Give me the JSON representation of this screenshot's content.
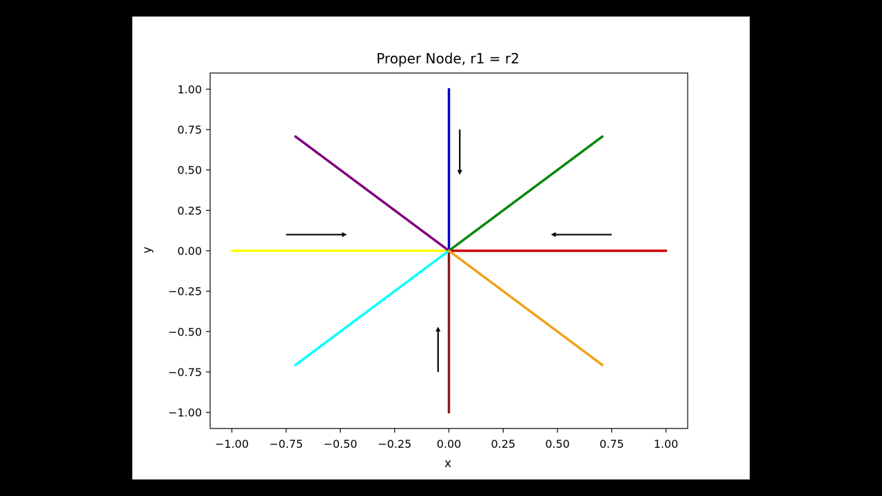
{
  "chart_data": {
    "type": "line",
    "title": "Proper Node, r1 = r2",
    "xlabel": "x",
    "ylabel": "y",
    "xlim": [
      -1.1,
      1.1
    ],
    "ylim": [
      -1.1,
      1.1
    ],
    "x_ticks": [
      "−1.00",
      "−0.75",
      "−0.50",
      "−0.25",
      "0.00",
      "0.25",
      "0.50",
      "0.75",
      "1.00"
    ],
    "y_ticks": [
      "1.00",
      "0.75",
      "0.50",
      "0.25",
      "0.00",
      "−0.25",
      "−0.50",
      "−0.75",
      "−1.00"
    ],
    "grid": false,
    "legend": "none",
    "series": [
      {
        "color": "#cc0000",
        "x": [
          0,
          1
        ],
        "y": [
          0,
          0
        ]
      },
      {
        "color": "#0000cc",
        "x": [
          0,
          0
        ],
        "y": [
          0,
          1
        ]
      },
      {
        "color": "#ffff00",
        "x": [
          0,
          -1
        ],
        "y": [
          0,
          0
        ]
      },
      {
        "color": "#8b1a1a",
        "x": [
          0,
          0
        ],
        "y": [
          0,
          -1
        ]
      },
      {
        "color": "#008800",
        "x": [
          0,
          0.707
        ],
        "y": [
          0,
          0.707
        ]
      },
      {
        "color": "#800080",
        "x": [
          0,
          -0.707
        ],
        "y": [
          0,
          0.707
        ]
      },
      {
        "color": "#00ffff",
        "x": [
          0,
          -0.707
        ],
        "y": [
          0,
          -0.707
        ]
      },
      {
        "color": "#f0a01a",
        "x": [
          0,
          0.707
        ],
        "y": [
          0,
          -0.707
        ]
      }
    ],
    "arrows": [
      {
        "from": [
          0.05,
          0.75
        ],
        "to": [
          0.05,
          0.47
        ]
      },
      {
        "from": [
          -0.75,
          0.1
        ],
        "to": [
          -0.47,
          0.1
        ]
      },
      {
        "from": [
          0.75,
          0.1
        ],
        "to": [
          0.47,
          0.1
        ]
      },
      {
        "from": [
          -0.05,
          -0.75
        ],
        "to": [
          -0.05,
          -0.47
        ]
      }
    ]
  }
}
